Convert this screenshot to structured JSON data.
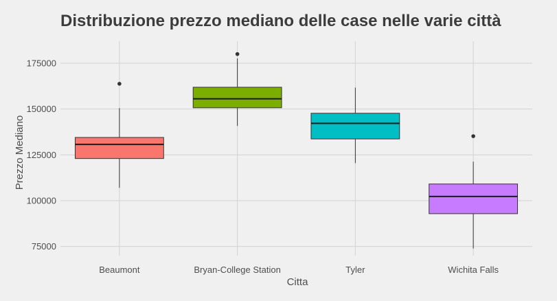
{
  "chart_data": {
    "type": "boxplot",
    "title": "Distribuzione prezzo mediano delle case nelle varie città",
    "xlabel": "Citta",
    "ylabel": "Prezzo Mediano",
    "ylim": [
      70000,
      187000
    ],
    "yticks": [
      75000,
      100000,
      125000,
      150000,
      175000
    ],
    "grid": true,
    "legend": "none",
    "categories": [
      "Beaumont",
      "Bryan-College Station",
      "Tyler",
      "Wichita Falls"
    ],
    "series": [
      {
        "category": "Beaumont",
        "min": 107000,
        "q1": 123000,
        "median": 130700,
        "q3": 134500,
        "max": 150500,
        "outliers": [
          163800
        ],
        "color": "#f8766d"
      },
      {
        "category": "Bryan-College Station",
        "min": 140800,
        "q1": 150700,
        "median": 155600,
        "q3": 161900,
        "max": 177600,
        "outliers": [
          180000
        ],
        "color": "#7cae00"
      },
      {
        "category": "Tyler",
        "min": 120500,
        "q1": 133700,
        "median": 142200,
        "q3": 147700,
        "max": 161700,
        "outliers": [],
        "color": "#00bfc4"
      },
      {
        "category": "Wichita Falls",
        "min": 73900,
        "q1": 92900,
        "median": 102300,
        "q3": 109100,
        "max": 121300,
        "outliers": [
          135200
        ],
        "color": "#c77cff"
      }
    ]
  }
}
